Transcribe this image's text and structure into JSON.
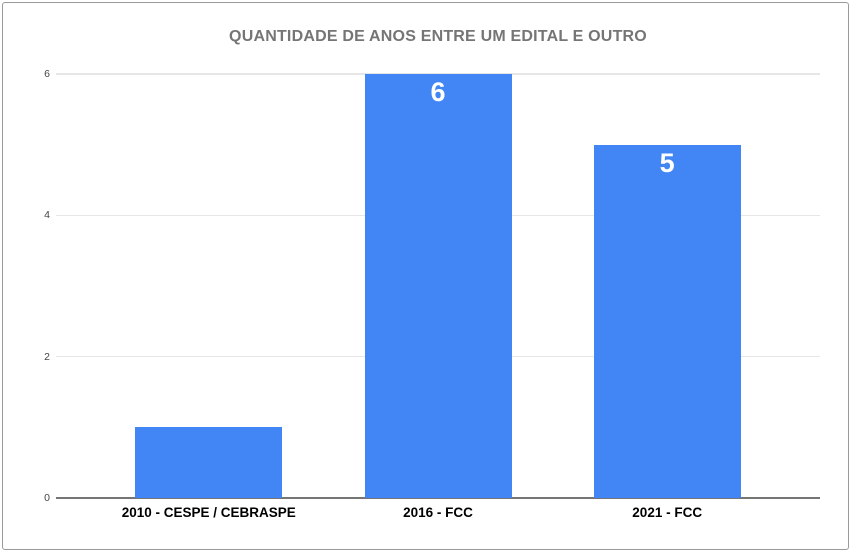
{
  "chart": {
    "title": "QUANTIDADE DE ANOS ENTRE UM EDITAL E OUTRO"
  },
  "chart_data": {
    "type": "bar",
    "title": "QUANTIDADE DE ANOS ENTRE UM EDITAL E OUTRO",
    "categories": [
      "2010 - CESPE / CEBRASPE",
      "2016 - FCC",
      "2021 - FCC"
    ],
    "values": [
      1,
      6,
      5
    ],
    "data_labels": [
      "",
      "6",
      "5"
    ],
    "xlabel": "",
    "ylabel": "",
    "ylim": [
      0,
      6
    ],
    "yticks": [
      0,
      2,
      4,
      6
    ],
    "grid": true,
    "legend": false,
    "colors": {
      "bar": "#4285f4",
      "title_text": "#757575",
      "gridline": "#e6e6e6",
      "axis_line": "#757575",
      "tick_label": "#444444",
      "category_label": "#000000",
      "value_label": "#ffffff",
      "frame_border": "#999999"
    }
  }
}
